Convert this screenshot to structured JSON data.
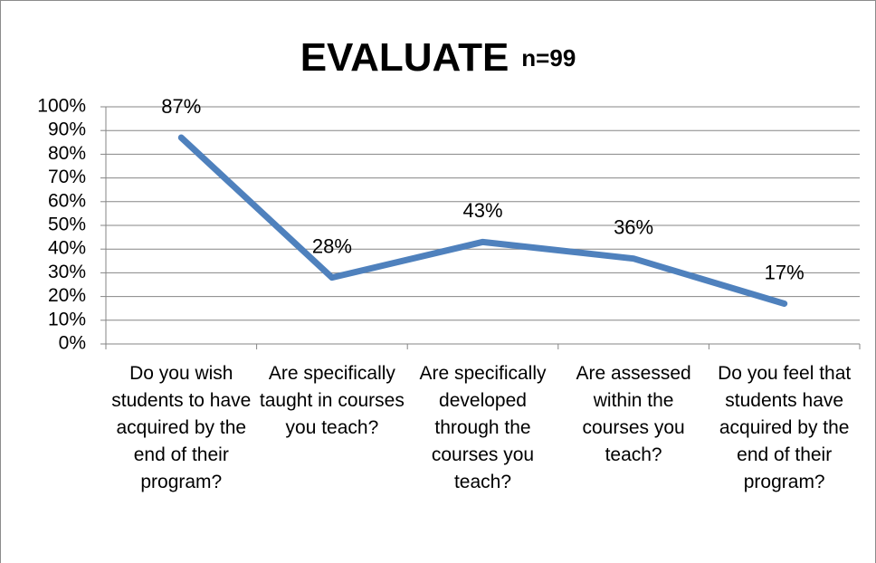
{
  "chart_data": {
    "type": "line",
    "title": "EVALUATE",
    "subtitle": "n=99",
    "categories": [
      "Do you wish students to have acquired by the end of their program?",
      "Are specifically taught in courses you teach?",
      "Are specifically developed through the courses you teach?",
      "Are assessed within the courses you teach?",
      "Do you feel that students have acquired by the end of their program?"
    ],
    "values": [
      87,
      28,
      43,
      36,
      17
    ],
    "value_labels": [
      "87%",
      "28%",
      "43%",
      "36%",
      "17%"
    ],
    "color": "#4f81bd",
    "ylim": [
      0,
      100
    ],
    "yticks": [
      {
        "value": 0,
        "label": "0%"
      },
      {
        "value": 10,
        "label": "10%"
      },
      {
        "value": 20,
        "label": "20%"
      },
      {
        "value": 30,
        "label": "30%"
      },
      {
        "value": 40,
        "label": "40%"
      },
      {
        "value": 50,
        "label": "50%"
      },
      {
        "value": 60,
        "label": "60%"
      },
      {
        "value": 70,
        "label": "70%"
      },
      {
        "value": 80,
        "label": "80%"
      },
      {
        "value": 90,
        "label": "90%"
      },
      {
        "value": 100,
        "label": "100%"
      }
    ],
    "grid": true
  }
}
